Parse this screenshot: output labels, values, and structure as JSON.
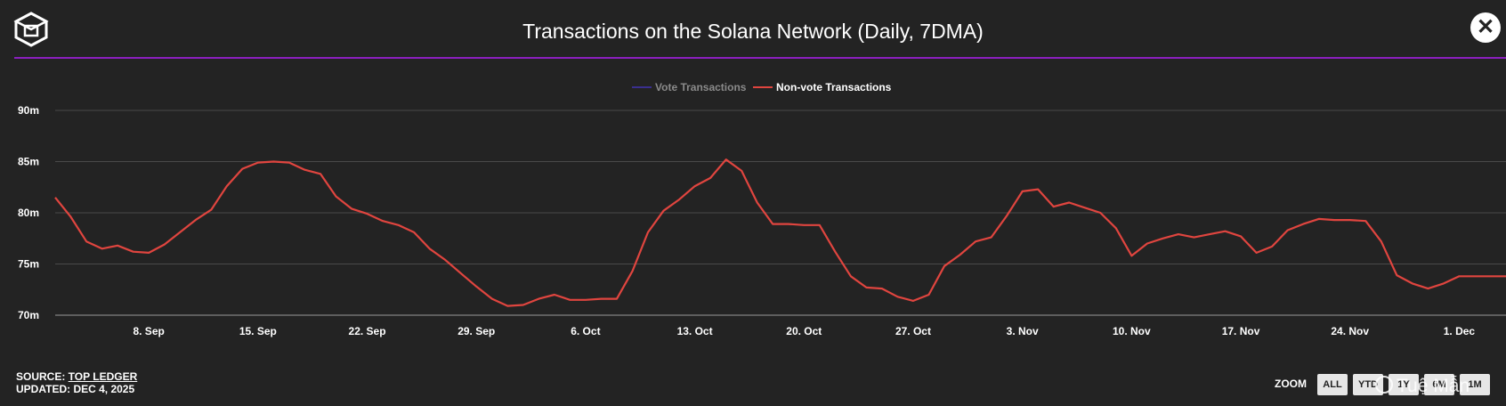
{
  "header": {
    "title": "Transactions on the Solana Network (Daily, 7DMA)",
    "close_label": "✕"
  },
  "colors": {
    "background": "#232323",
    "rule": "#8b1fbf",
    "vote_series": "#3a2f8f",
    "nonvote_series": "#e0453f",
    "grid": "#4a4a4a"
  },
  "footer": {
    "source_prefix": "SOURCE: ",
    "source_link": "TOP LEDGER",
    "updated": "UPDATED: DEC 4, 2025"
  },
  "zoom": {
    "label": "ZOOM",
    "buttons": [
      "ALL",
      "YTD",
      "1Y",
      "6M",
      "1M"
    ]
  },
  "watermark": "Tuệ Mẫn",
  "chart_data": {
    "type": "line",
    "title": "Transactions on the Solana Network (Daily, 7DMA)",
    "legend": {
      "placement": "top-center",
      "items": [
        {
          "name": "Vote Transactions",
          "hidden": true
        },
        {
          "name": "Non-vote Transactions",
          "hidden": false
        }
      ]
    },
    "grid": true,
    "y_axis": {
      "ticks": [
        70,
        75,
        80,
        85,
        90
      ],
      "tick_labels": [
        "70m",
        "75m",
        "80m",
        "85m",
        "90m"
      ],
      "range": [
        70,
        90
      ],
      "unit": "millions"
    },
    "x_axis": {
      "range": [
        "2025-09-02",
        "2025-12-04"
      ],
      "ticks": [
        "2025-09-08",
        "2025-09-15",
        "2025-09-22",
        "2025-09-29",
        "2025-10-06",
        "2025-10-13",
        "2025-10-20",
        "2025-10-27",
        "2025-11-03",
        "2025-11-10",
        "2025-11-17",
        "2025-11-24",
        "2025-12-01"
      ],
      "tick_labels": [
        "8. Sep",
        "15. Sep",
        "22. Sep",
        "29. Sep",
        "6. Oct",
        "13. Oct",
        "20. Oct",
        "27. Oct",
        "3. Nov",
        "10. Nov",
        "17. Nov",
        "24. Nov",
        "1. Dec"
      ]
    },
    "series": [
      {
        "name": "Non-vote Transactions",
        "x": [
          "2025-09-02",
          "2025-09-03",
          "2025-09-04",
          "2025-09-05",
          "2025-09-06",
          "2025-09-07",
          "2025-09-08",
          "2025-09-09",
          "2025-09-10",
          "2025-09-11",
          "2025-09-12",
          "2025-09-13",
          "2025-09-14",
          "2025-09-15",
          "2025-09-16",
          "2025-09-17",
          "2025-09-18",
          "2025-09-19",
          "2025-09-20",
          "2025-09-21",
          "2025-09-22",
          "2025-09-23",
          "2025-09-24",
          "2025-09-25",
          "2025-09-26",
          "2025-09-27",
          "2025-09-28",
          "2025-09-29",
          "2025-09-30",
          "2025-10-01",
          "2025-10-02",
          "2025-10-03",
          "2025-10-04",
          "2025-10-05",
          "2025-10-06",
          "2025-10-07",
          "2025-10-08",
          "2025-10-09",
          "2025-10-10",
          "2025-10-11",
          "2025-10-12",
          "2025-10-13",
          "2025-10-14",
          "2025-10-15",
          "2025-10-16",
          "2025-10-17",
          "2025-10-18",
          "2025-10-19",
          "2025-10-20",
          "2025-10-21",
          "2025-10-22",
          "2025-10-23",
          "2025-10-24",
          "2025-10-25",
          "2025-10-26",
          "2025-10-27",
          "2025-10-28",
          "2025-10-29",
          "2025-10-30",
          "2025-10-31",
          "2025-11-01",
          "2025-11-02",
          "2025-11-03",
          "2025-11-04",
          "2025-11-05",
          "2025-11-06",
          "2025-11-07",
          "2025-11-08",
          "2025-11-09",
          "2025-11-10",
          "2025-11-11",
          "2025-11-12",
          "2025-11-13",
          "2025-11-14",
          "2025-11-15",
          "2025-11-16",
          "2025-11-17",
          "2025-11-18",
          "2025-11-19",
          "2025-11-20",
          "2025-11-21",
          "2025-11-22",
          "2025-11-23",
          "2025-11-24",
          "2025-11-25",
          "2025-11-26",
          "2025-11-27",
          "2025-11-28",
          "2025-11-29",
          "2025-11-30",
          "2025-12-01",
          "2025-12-02",
          "2025-12-03",
          "2025-12-04"
        ],
        "values": [
          81.5,
          79.6,
          77.2,
          76.5,
          76.8,
          76.2,
          76.1,
          76.9,
          78.1,
          79.3,
          80.3,
          82.6,
          84.3,
          84.9,
          85.0,
          84.9,
          84.2,
          83.8,
          81.6,
          80.4,
          79.9,
          79.2,
          78.8,
          78.1,
          76.5,
          75.4,
          74.1,
          72.8,
          71.6,
          70.9,
          71.0,
          71.6,
          72.0,
          71.5,
          71.5,
          71.6,
          71.6,
          74.3,
          78.1,
          80.2,
          81.3,
          82.6,
          83.4,
          85.2,
          84.1,
          81.0,
          78.9,
          78.9,
          78.8,
          78.8,
          76.2,
          73.8,
          72.7,
          72.6,
          71.8,
          71.4,
          72.0,
          74.8,
          75.9,
          77.2,
          77.6,
          79.7,
          82.1,
          82.3,
          80.6,
          81.0,
          80.5,
          80.0,
          78.5,
          75.8,
          77.0,
          77.5,
          77.9,
          77.6,
          77.9,
          78.2,
          77.7,
          76.1,
          76.7,
          78.3,
          78.9,
          79.4,
          79.3,
          79.3,
          79.2,
          77.2,
          73.9,
          73.1,
          72.6,
          73.1,
          73.8,
          73.8,
          73.8,
          73.8
        ]
      }
    ]
  }
}
